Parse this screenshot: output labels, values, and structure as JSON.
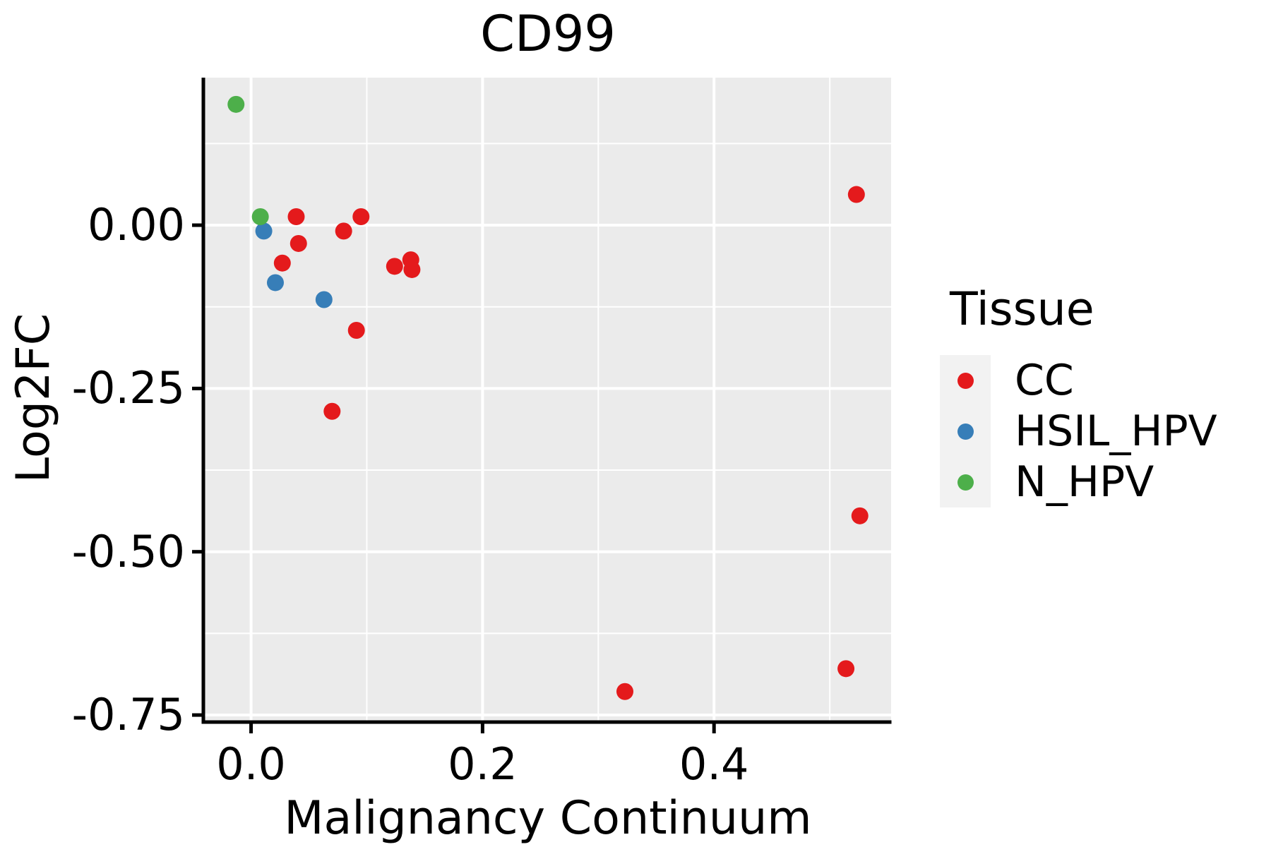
{
  "chart_data": {
    "type": "scatter",
    "title": "CD99",
    "xlabel": "Malignancy Continuum",
    "ylabel": "Log2FC",
    "xlim": [
      -0.04,
      0.553
    ],
    "ylim": [
      -0.7586,
      0.2259
    ],
    "x_ticks": {
      "values": [
        0.0,
        0.2,
        0.4
      ],
      "labels": [
        "0.0",
        "0.2",
        "0.4"
      ]
    },
    "y_ticks": {
      "values": [
        0.0,
        -0.25,
        -0.5,
        -0.75
      ],
      "labels": [
        "0.00",
        "-0.25",
        "-0.50",
        "-0.75"
      ]
    },
    "grid": {
      "major": true,
      "minor": true,
      "gridline_color": "#FFFFFF"
    },
    "panel_bg_color": "#EBEBEB",
    "axis_color": "#000000",
    "legend": {
      "title": "Tissue",
      "position": "right",
      "key_bg_color": "#F2F2F2"
    },
    "series": [
      {
        "name": "CC",
        "color": "#E41A1C",
        "points": [
          [
            0.039,
            0.013
          ],
          [
            0.095,
            0.013
          ],
          [
            0.08,
            -0.009
          ],
          [
            0.041,
            -0.028
          ],
          [
            0.027,
            -0.058
          ],
          [
            0.124,
            -0.063
          ],
          [
            0.138,
            -0.053
          ],
          [
            0.139,
            -0.068
          ],
          [
            0.091,
            -0.161
          ],
          [
            0.07,
            -0.285
          ],
          [
            0.323,
            -0.714
          ],
          [
            0.514,
            -0.679
          ],
          [
            0.523,
            0.047
          ],
          [
            0.526,
            -0.445
          ]
        ]
      },
      {
        "name": "HSIL_HPV",
        "color": "#377EB8",
        "points": [
          [
            0.011,
            -0.009
          ],
          [
            0.021,
            -0.088
          ],
          [
            0.063,
            -0.114
          ]
        ]
      },
      {
        "name": "N_HPV",
        "color": "#4DAF4A",
        "points": [
          [
            -0.013,
            0.185
          ],
          [
            0.008,
            0.013
          ]
        ]
      }
    ]
  }
}
